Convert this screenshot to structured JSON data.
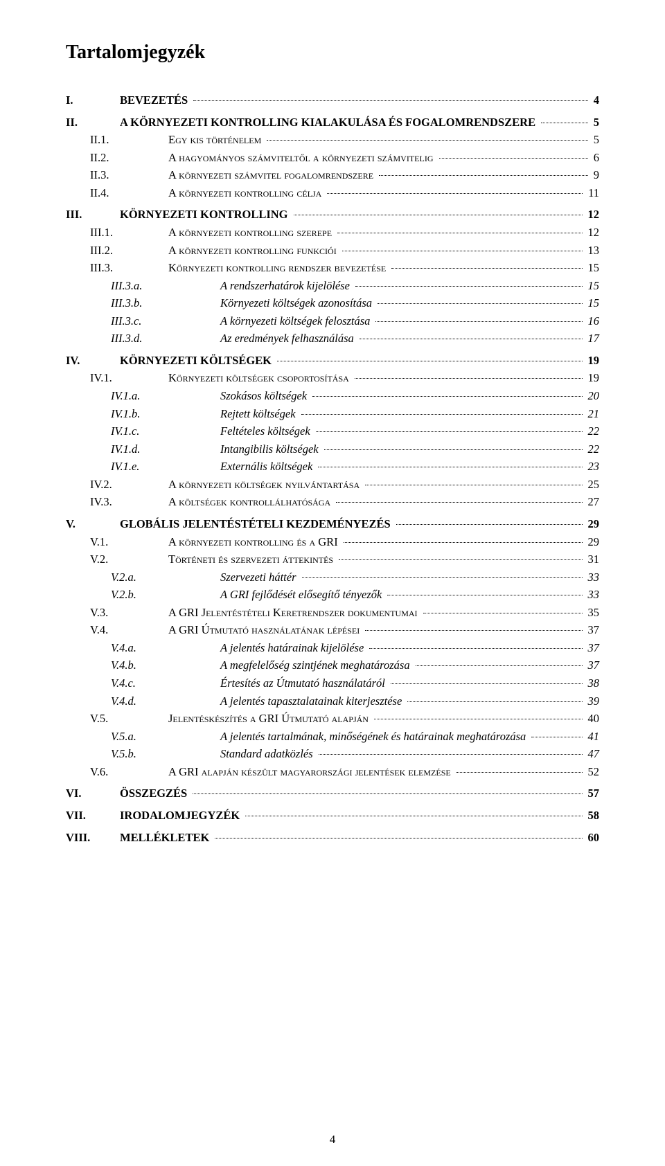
{
  "title": "Tartalomjegyzék",
  "page_number": "4",
  "entries": [
    {
      "level": 1,
      "num": "I.",
      "text": "BEVEZETÉS",
      "page": "4",
      "sc": false
    },
    {
      "level": 1,
      "num": "II.",
      "text": "A KÖRNYEZETI KONTROLLING KIALAKULÁSA ÉS FOGALOMRENDSZERE",
      "page": "5",
      "sc": false
    },
    {
      "level": 2,
      "num": "II.1.",
      "text": "Egy kis történelem",
      "page": "5",
      "sc": true
    },
    {
      "level": 2,
      "num": "II.2.",
      "text": "A hagyományos számviteltől a környezeti számvitelig",
      "page": "6",
      "sc": true
    },
    {
      "level": 2,
      "num": "II.3.",
      "text": "A környezeti számvitel fogalomrendszere",
      "page": "9",
      "sc": true
    },
    {
      "level": 2,
      "num": "II.4.",
      "text": "A környezeti kontrolling célja",
      "page": "11",
      "sc": true
    },
    {
      "level": 1,
      "num": "III.",
      "text": "KÖRNYEZETI KONTROLLING",
      "page": "12",
      "sc": false
    },
    {
      "level": 2,
      "num": "III.1.",
      "text": "A környezeti kontrolling szerepe",
      "page": "12",
      "sc": true
    },
    {
      "level": 2,
      "num": "III.2.",
      "text": "A környezeti kontrolling funkciói",
      "page": "13",
      "sc": true
    },
    {
      "level": 2,
      "num": "III.3.",
      "text": "Környezeti kontrolling rendszer bevezetése",
      "page": "15",
      "sc": true
    },
    {
      "level": 3,
      "num": "III.3.a.",
      "text": "A rendszerhatárok kijelölése",
      "page": "15",
      "sc": false
    },
    {
      "level": 3,
      "num": "III.3.b.",
      "text": "Környezeti költségek azonosítása",
      "page": "15",
      "sc": false
    },
    {
      "level": 3,
      "num": "III.3.c.",
      "text": "A környezeti költségek felosztása",
      "page": "16",
      "sc": false
    },
    {
      "level": 3,
      "num": "III.3.d.",
      "text": "Az eredmények felhasználása",
      "page": "17",
      "sc": false
    },
    {
      "level": 1,
      "num": "IV.",
      "text": "KÖRNYEZETI KÖLTSÉGEK",
      "page": "19",
      "sc": false
    },
    {
      "level": 2,
      "num": "IV.1.",
      "text": "Környezeti költségek csoportosítása",
      "page": "19",
      "sc": true
    },
    {
      "level": 3,
      "num": "IV.1.a.",
      "text": "Szokásos költségek",
      "page": "20",
      "sc": false
    },
    {
      "level": 3,
      "num": "IV.1.b.",
      "text": "Rejtett költségek",
      "page": "21",
      "sc": false
    },
    {
      "level": 3,
      "num": "IV.1.c.",
      "text": "Feltételes költségek",
      "page": "22",
      "sc": false
    },
    {
      "level": 3,
      "num": "IV.1.d.",
      "text": "Intangibilis költségek",
      "page": "22",
      "sc": false
    },
    {
      "level": 3,
      "num": "IV.1.e.",
      "text": "Externális költségek",
      "page": "23",
      "sc": false
    },
    {
      "level": 2,
      "num": "IV.2.",
      "text": "A környezeti költségek nyilvántartása",
      "page": "25",
      "sc": true
    },
    {
      "level": 2,
      "num": "IV.3.",
      "text": "A költségek kontrollálhatósága",
      "page": "27",
      "sc": true
    },
    {
      "level": 1,
      "num": "V.",
      "text": "GLOBÁLIS JELENTÉSTÉTELI KEZDEMÉNYEZÉS",
      "page": "29",
      "sc": false
    },
    {
      "level": 2,
      "num": "V.1.",
      "text": "A környezeti kontrolling és a GRI",
      "page": "29",
      "sc": true
    },
    {
      "level": 2,
      "num": "V.2.",
      "text": "Történeti és szervezeti áttekintés",
      "page": "31",
      "sc": true
    },
    {
      "level": 3,
      "num": "V.2.a.",
      "text": "Szervezeti háttér",
      "page": "33",
      "sc": false
    },
    {
      "level": 3,
      "num": "V.2.b.",
      "text": "A GRI fejlődését elősegítő tényezők",
      "page": "33",
      "sc": false
    },
    {
      "level": 2,
      "num": "V.3.",
      "text": "A GRI Jelentéstételi Keretrendszer dokumentumai",
      "page": "35",
      "sc": true
    },
    {
      "level": 2,
      "num": "V.4.",
      "text": "A GRI Útmutató használatának lépései",
      "page": "37",
      "sc": true
    },
    {
      "level": 3,
      "num": "V.4.a.",
      "text": "A jelentés határainak kijelölése",
      "page": "37",
      "sc": false
    },
    {
      "level": 3,
      "num": "V.4.b.",
      "text": "A megfelelőség szintjének meghatározása",
      "page": "37",
      "sc": false
    },
    {
      "level": 3,
      "num": "V.4.c.",
      "text": "Értesítés az Útmutató használatáról",
      "page": "38",
      "sc": false
    },
    {
      "level": 3,
      "num": "V.4.d.",
      "text": "A jelentés tapasztalatainak kiterjesztése",
      "page": "39",
      "sc": false
    },
    {
      "level": 2,
      "num": "V.5.",
      "text": "Jelentéskészítés a GRI Útmutató alapján",
      "page": "40",
      "sc": true
    },
    {
      "level": 3,
      "num": "V.5.a.",
      "text": "A jelentés tartalmának, minőségének és határainak meghatározása",
      "page": "41",
      "sc": false
    },
    {
      "level": 3,
      "num": "V.5.b.",
      "text": "Standard adatközlés",
      "page": "47",
      "sc": false
    },
    {
      "level": 2,
      "num": "V.6.",
      "text": "A GRI alapján készült magyarországi jelentések elemzése",
      "page": "52",
      "sc": true
    },
    {
      "level": 1,
      "num": "VI.",
      "text": "ÖSSZEGZÉS",
      "page": "57",
      "sc": false
    },
    {
      "level": 1,
      "num": "VII.",
      "text": "IRODALOMJEGYZÉK",
      "page": "58",
      "sc": false
    },
    {
      "level": 1,
      "num": "VIII.",
      "text": "MELLÉKLETEK",
      "page": "60",
      "sc": false
    }
  ]
}
